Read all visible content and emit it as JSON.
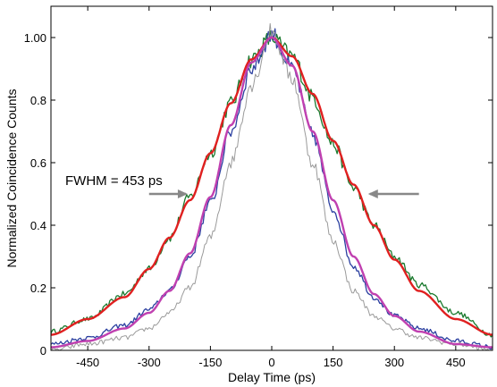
{
  "chart_data": {
    "type": "line",
    "xlabel": "Delay Time (ps)",
    "ylabel": "Normalized Coincidence Counts",
    "xlim": [
      -540,
      540
    ],
    "ylim": [
      0,
      1.1
    ],
    "x_ticks": [
      -450,
      -300,
      -150,
      0,
      150,
      300,
      450
    ],
    "x_tick_labels": [
      "-450",
      "-300",
      "-150",
      "0",
      "150",
      "300",
      "450"
    ],
    "y_ticks": [
      0,
      0.2,
      0.4,
      0.6,
      0.8,
      1.0
    ],
    "y_tick_labels": [
      "0",
      "0.2",
      "0.4",
      "0.6",
      "0.8",
      "1.00"
    ],
    "grid": false,
    "annotation": {
      "text": "FWHM = 453 ps",
      "arrow_left_x": [
        -300,
        -210
      ],
      "arrow_right_x": [
        360,
        240
      ],
      "arrow_y": 0.5
    },
    "series": [
      {
        "color": "#1a7a2e",
        "style": "noisy",
        "x": [
          -540,
          -450,
          -360,
          -300,
          -250,
          -200,
          -150,
          -100,
          -50,
          0,
          50,
          100,
          150,
          200,
          250,
          300,
          360,
          450,
          540
        ],
        "values": [
          0.06,
          0.1,
          0.18,
          0.26,
          0.36,
          0.49,
          0.63,
          0.79,
          0.93,
          1.0,
          0.94,
          0.81,
          0.66,
          0.52,
          0.4,
          0.3,
          0.21,
          0.12,
          0.05
        ]
      },
      {
        "color": "#2b3fa0",
        "style": "noisy",
        "x": [
          -540,
          -450,
          -360,
          -300,
          -250,
          -200,
          -150,
          -100,
          -50,
          0,
          50,
          100,
          150,
          200,
          250,
          300,
          360,
          450,
          540
        ],
        "values": [
          0.02,
          0.04,
          0.08,
          0.13,
          0.19,
          0.3,
          0.47,
          0.7,
          0.9,
          1.01,
          0.9,
          0.69,
          0.45,
          0.27,
          0.17,
          0.11,
          0.07,
          0.03,
          0.01
        ]
      },
      {
        "color": "#9a9a9a",
        "style": "noisy",
        "x": [
          -540,
          -450,
          -360,
          -300,
          -250,
          -200,
          -150,
          -100,
          -50,
          0,
          50,
          100,
          150,
          200,
          250,
          300,
          360,
          450,
          540
        ],
        "values": [
          0.0,
          0.02,
          0.04,
          0.07,
          0.12,
          0.2,
          0.36,
          0.6,
          0.85,
          1.02,
          0.87,
          0.6,
          0.35,
          0.19,
          0.11,
          0.07,
          0.04,
          0.02,
          0.0
        ]
      },
      {
        "color": "#e02020",
        "style": "smooth",
        "x": [
          -540,
          -450,
          -360,
          -300,
          -250,
          -200,
          -150,
          -100,
          -50,
          0,
          50,
          100,
          150,
          200,
          250,
          300,
          360,
          450,
          540
        ],
        "values": [
          0.05,
          0.1,
          0.17,
          0.26,
          0.36,
          0.48,
          0.63,
          0.79,
          0.93,
          1.0,
          0.94,
          0.82,
          0.67,
          0.53,
          0.4,
          0.29,
          0.19,
          0.1,
          0.05
        ]
      },
      {
        "color": "#c040b0",
        "style": "smooth",
        "x": [
          -540,
          -450,
          -360,
          -300,
          -250,
          -200,
          -150,
          -100,
          -50,
          0,
          50,
          100,
          150,
          200,
          250,
          300,
          360,
          450,
          540
        ],
        "values": [
          0.01,
          0.03,
          0.07,
          0.12,
          0.19,
          0.31,
          0.49,
          0.72,
          0.92,
          1.0,
          0.91,
          0.7,
          0.48,
          0.3,
          0.18,
          0.11,
          0.06,
          0.02,
          0.01
        ]
      }
    ]
  }
}
